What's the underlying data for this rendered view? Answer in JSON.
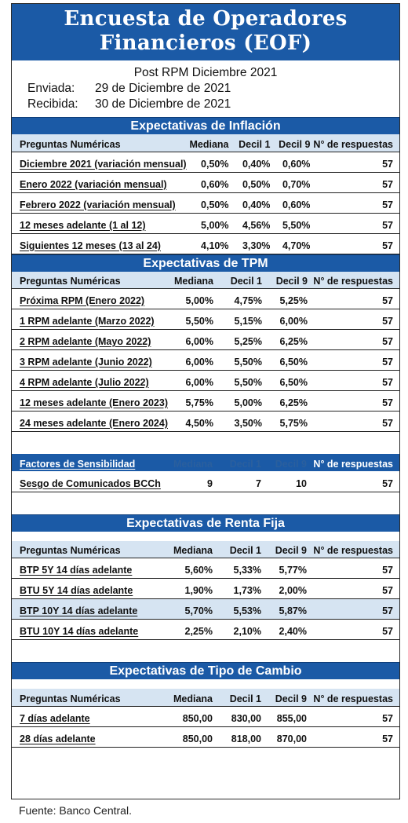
{
  "title": {
    "line1": "Encuesta de Operadores",
    "line2": "Financieros (EOF)"
  },
  "meta": {
    "subtitle": "Post RPM Diciembre 2021",
    "sent_label": "Enviada:",
    "sent_value": "29 de Diciembre de 2021",
    "received_label": "Recibida:",
    "received_value": "30 de Diciembre de 2021"
  },
  "columns": {
    "question": "Preguntas Numéricas",
    "median": "Mediana",
    "decile1": "Decil 1",
    "decile9": "Decil 9",
    "responses": "N° de respuestas"
  },
  "inflation": {
    "title": "Expectativas de Inflación",
    "rows": [
      [
        "Diciembre 2021 (variación mensual)",
        "0,50%",
        "0,40%",
        "0,60%",
        "57"
      ],
      [
        "Enero 2022 (variación mensual)",
        "0,60%",
        "0,50%",
        "0,70%",
        "57"
      ],
      [
        "Febrero 2022 (variación mensual)",
        "0,50%",
        "0,40%",
        "0,60%",
        "57"
      ],
      [
        "12 meses adelante (1 al 12)",
        "5,00%",
        "4,56%",
        "5,50%",
        "57"
      ],
      [
        "Siguientes 12 meses (13 al 24)",
        "4,10%",
        "3,30%",
        "4,70%",
        "57"
      ]
    ]
  },
  "tpm": {
    "title": "Expectativas de TPM",
    "rows": [
      [
        "Próxima RPM (Enero 2022)",
        "5,00%",
        "4,75%",
        "5,25%",
        "57"
      ],
      [
        "1 RPM adelante (Marzo 2022)",
        "5,50%",
        "5,15%",
        "6,00%",
        "57"
      ],
      [
        "2 RPM adelante (Mayo 2022)",
        "6,00%",
        "5,25%",
        "6,25%",
        "57"
      ],
      [
        "3 RPM adelante (Junio 2022)",
        "6,00%",
        "5,50%",
        "6,50%",
        "57"
      ],
      [
        "4 RPM adelante (Julio 2022)",
        "6,00%",
        "5,50%",
        "6,50%",
        "57"
      ],
      [
        "12 meses adelante (Enero 2023)",
        "5,75%",
        "5,00%",
        "6,25%",
        "57"
      ],
      [
        "24 meses adelante (Enero 2024)",
        "4,50%",
        "3,50%",
        "5,75%",
        "57"
      ]
    ]
  },
  "sensitivity": {
    "header": "Factores de Sensibilidad",
    "rows": [
      [
        "Sesgo de Comunicados BCCh",
        "9",
        "7",
        "10",
        "57"
      ]
    ]
  },
  "fixed_income": {
    "title": "Expectativas de Renta Fija",
    "rows": [
      [
        "BTP 5Y 14 días adelante",
        "5,60%",
        "5,33%",
        "5,77%",
        "57"
      ],
      [
        "BTU 5Y 14 días adelante",
        "1,90%",
        "1,73%",
        "2,00%",
        "57"
      ],
      [
        "BTP 10Y 14 días adelante",
        "5,70%",
        "5,53%",
        "5,87%",
        "57"
      ],
      [
        "BTU 10Y 14 días adelante",
        "2,25%",
        "2,10%",
        "2,40%",
        "57"
      ]
    ]
  },
  "exchange": {
    "title": "Expectativas de Tipo de Cambio",
    "rows": [
      [
        "7 días adelante",
        "850,00",
        "830,00",
        "855,00",
        "57"
      ],
      [
        "28 días adelante",
        "850,00",
        "818,00",
        "870,00",
        "57"
      ]
    ]
  },
  "footer": "Fuente: Banco Central.",
  "colors": {
    "header_blue": "#1b5aa6",
    "row_tint": "#d6e4f2"
  }
}
